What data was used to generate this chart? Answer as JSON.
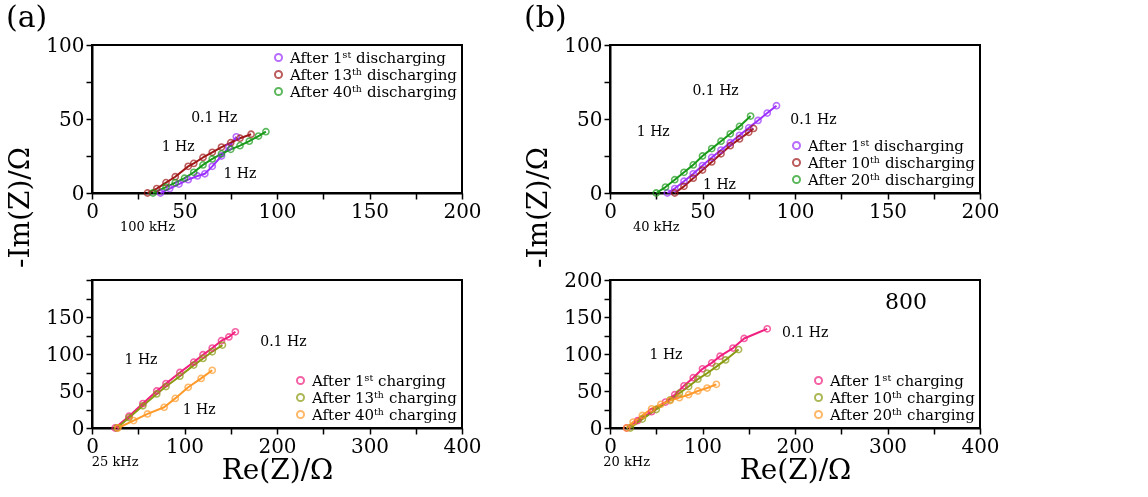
{
  "chart_data": [
    {
      "type": "line",
      "title": "(a)",
      "ylabel": "-Im(Z)/Ω",
      "xlim": [
        0,
        200
      ],
      "ylim": [
        0,
        100
      ],
      "xticks": [
        0,
        {
          "value": 25,
          "label": null
        },
        50,
        {
          "value": 75,
          "label": null
        },
        100,
        {
          "value": 125,
          "label": null
        },
        150,
        {
          "value": 175,
          "label": null
        },
        200
      ],
      "yticks": [
        0,
        {
          "value": 25,
          "label": null
        },
        50,
        {
          "value": 75,
          "label": null
        },
        100
      ],
      "legend": "top right",
      "marker": "circle",
      "series": [
        {
          "name": "After 1ˢᵗ discharging",
          "color": "#9b30ff",
          "x": [
            37,
            42,
            47,
            52,
            57,
            61,
            65,
            70,
            74,
            78
          ],
          "values": [
            0,
            3,
            6,
            9,
            11.5,
            13,
            18,
            25,
            31,
            38
          ]
        },
        {
          "name": "After 13ᵗʰ discharging",
          "color": "#a01818",
          "x": [
            30,
            35,
            40,
            45,
            52,
            55,
            60,
            65,
            70,
            75,
            80,
            86
          ],
          "values": [
            0,
            3,
            7,
            11,
            18,
            20,
            24,
            27.5,
            31,
            34,
            37,
            39.7
          ]
        },
        {
          "name": "After 40ᵗʰ discharging",
          "color": "#1a9a1a",
          "x": [
            33,
            40,
            45,
            50,
            55,
            60,
            65,
            70,
            75,
            80,
            85,
            90,
            94
          ],
          "values": [
            0,
            4,
            7,
            10,
            14,
            19,
            23,
            26.5,
            29.5,
            32,
            35,
            38.5,
            41.4
          ]
        }
      ],
      "annotations": [
        {
          "text": "0.1 Hz",
          "x": 78,
          "y": 38
        },
        {
          "text": "1 Hz",
          "x": 52,
          "y": 18
        },
        {
          "text": "1 Hz",
          "x": 61,
          "y": 13
        },
        {
          "text": "100 kHz",
          "x": 30,
          "y": 0
        }
      ]
    },
    {
      "type": "line",
      "xlabel": "Re(Z)/Ω",
      "xlim": [
        0,
        400
      ],
      "ylim": [
        0,
        200
      ],
      "xticks": [
        0,
        {
          "value": 50,
          "label": null
        },
        100,
        {
          "value": 150,
          "label": null
        },
        200,
        {
          "value": 250,
          "label": null
        },
        300,
        {
          "value": 350,
          "label": null
        },
        400
      ],
      "yticks": [
        0,
        {
          "value": 25,
          "label": null
        },
        50,
        {
          "value": 75,
          "label": null
        },
        100,
        {
          "value": 125,
          "label": null
        },
        150,
        {
          "value": 175,
          "label": null
        },
        {
          "value": 200,
          "label": null
        }
      ],
      "legend": "bottom right",
      "marker": "circle",
      "series": [
        {
          "name": "After 1ˢᵗ charging",
          "color": "#f0207f",
          "x": [
            25,
            40,
            55,
            70,
            80,
            95,
            110,
            120,
            130,
            140,
            148,
            155
          ],
          "values": [
            0,
            16,
            33,
            50,
            60,
            75,
            89,
            99,
            108,
            118,
            123,
            130
          ]
        },
        {
          "name": "After 13ᵗʰ charging",
          "color": "#8a9a10",
          "x": [
            27,
            40,
            55,
            70,
            80,
            95,
            110,
            120,
            130,
            141
          ],
          "values": [
            0,
            14,
            30,
            46,
            56,
            70,
            85,
            94,
            103,
            112
          ]
        },
        {
          "name": "After 40ᵗʰ charging",
          "color": "#ff9a2a",
          "x": [
            28,
            45,
            60,
            78,
            90,
            104,
            118,
            130
          ],
          "values": [
            0,
            10,
            19,
            28,
            40,
            55,
            67,
            78
          ]
        }
      ],
      "annotations": [
        {
          "text": "0.1 Hz",
          "x": 155,
          "y": 130
        },
        {
          "text": "1 Hz",
          "x": 80,
          "y": 60
        },
        {
          "text": "1 Hz",
          "x": 78,
          "y": 28
        },
        {
          "text": "25 kHz",
          "x": 25,
          "y": 0
        }
      ]
    },
    {
      "type": "line",
      "title": "(b)",
      "ylabel": "-Im(Z)/Ω",
      "xlim": [
        0,
        200
      ],
      "ylim": [
        0,
        100
      ],
      "xticks": [
        0,
        {
          "value": 25,
          "label": null
        },
        50,
        {
          "value": 75,
          "label": null
        },
        100,
        {
          "value": 125,
          "label": null
        },
        150,
        {
          "value": 175,
          "label": null
        },
        200
      ],
      "yticks": [
        0,
        {
          "value": 25,
          "label": null
        },
        50,
        {
          "value": 75,
          "label": null
        },
        100
      ],
      "legend": "bottom right",
      "marker": "circle",
      "series": [
        {
          "name": "After 1ˢᵗ discharging",
          "color": "#9b30ff",
          "x": [
            31,
            35,
            40,
            45,
            50,
            55,
            60,
            65,
            70,
            75,
            80,
            85,
            90
          ],
          "values": [
            0,
            3,
            8,
            13,
            18.5,
            24,
            29,
            34,
            39,
            44,
            49,
            54,
            59
          ]
        },
        {
          "name": "After 10ᵗʰ discharging",
          "color": "#a01818",
          "x": [
            35,
            40,
            45,
            50,
            55,
            60,
            65,
            70,
            75,
            77.6
          ],
          "values": [
            0,
            4.5,
            10,
            15.5,
            21,
            26.5,
            32,
            36.5,
            41,
            43.6
          ]
        },
        {
          "name": "After 20ᵗʰ discharging",
          "color": "#1a9a1a",
          "x": [
            25,
            30,
            35,
            40,
            45,
            50,
            55,
            60,
            65,
            70,
            76
          ],
          "values": [
            0,
            4,
            9,
            14,
            19,
            25,
            30,
            35,
            40,
            45,
            52
          ]
        }
      ],
      "annotations": [
        {
          "text": "0.1 Hz",
          "x": 76,
          "y": 52
        },
        {
          "text": "0.1 Hz",
          "x": 90,
          "y": 59
        },
        {
          "text": "1 Hz",
          "x": 45,
          "y": 19
        },
        {
          "text": "1 Hz",
          "x": 50,
          "y": 15.5
        },
        {
          "text": "40 kHz",
          "x": 25,
          "y": 0
        }
      ]
    },
    {
      "type": "line",
      "xlabel": "Re(Z)/Ω",
      "xlim": [
        0,
        400
      ],
      "ylim": [
        0,
        200
      ],
      "xticks": [
        0,
        {
          "value": 50,
          "label": null
        },
        100,
        {
          "value": 150,
          "label": null
        },
        200,
        {
          "value": 250,
          "label": null
        },
        300,
        {
          "value": 350,
          "label": null
        },
        400
      ],
      "yticks": [
        0,
        {
          "value": 25,
          "label": null
        },
        50,
        {
          "value": 75,
          "label": null
        },
        100,
        {
          "value": 125,
          "label": null
        },
        150,
        {
          "value": 175,
          "label": null
        },
        200
      ],
      "legend": "bottom right",
      "marker": "circle",
      "series": [
        {
          "name": "After 1ˢᵗ charging",
          "color": "#f0207f",
          "x": [
            18,
            30,
            45,
            60,
            70,
            80,
            90,
            100,
            110,
            119,
            133,
            145,
            170
          ],
          "values": [
            0,
            10,
            22,
            35,
            45,
            57,
            68,
            80,
            88,
            97,
            108,
            121,
            134
          ]
        },
        {
          "name": "After 10ᵗʰ charging",
          "color": "#8a9a10",
          "x": [
            22,
            35,
            50,
            65,
            75,
            85,
            95,
            105,
            115,
            125,
            139
          ],
          "values": [
            0,
            12,
            25,
            38,
            47,
            56,
            66,
            74,
            83,
            92,
            106
          ]
        },
        {
          "name": "After 20ᵗʰ charging",
          "color": "#ff9a2a",
          "x": [
            18,
            25,
            35,
            45,
            55,
            65,
            75,
            85,
            95,
            105,
            115
          ],
          "values": [
            0,
            8,
            17,
            26,
            32,
            37,
            41,
            45,
            50,
            54,
            59
          ]
        }
      ],
      "annotations": [
        {
          "text": "0.1 Hz",
          "x": 170,
          "y": 134
        },
        {
          "text": "1 Hz",
          "x": 80,
          "y": 57
        },
        "800",
        {
          "text": "20 kHz",
          "x": 18,
          "y": 0
        }
      ]
    }
  ]
}
